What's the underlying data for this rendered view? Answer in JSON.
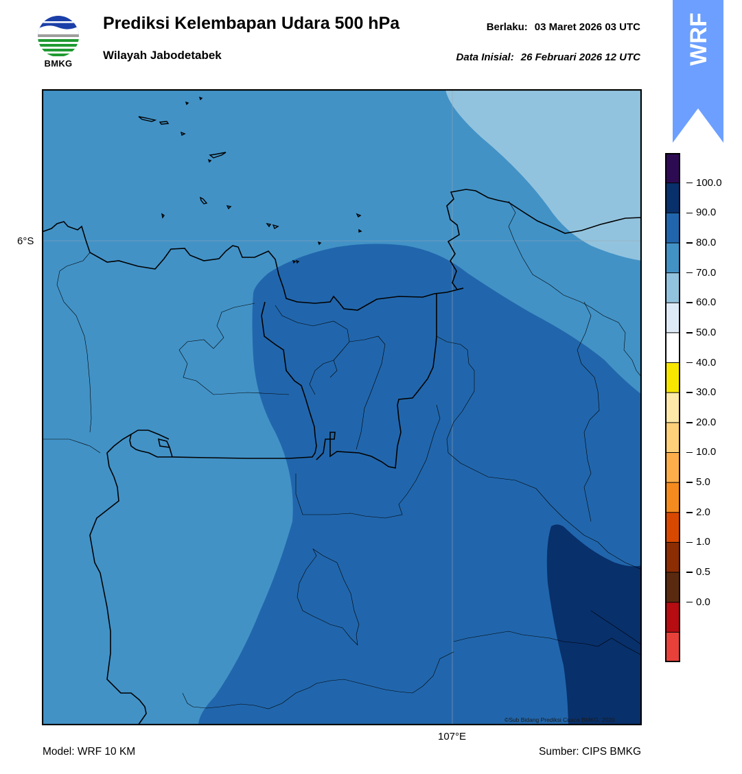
{
  "header": {
    "title": "Prediksi Kelembapan Udara 500 hPa",
    "region": "Wilayah Jabodetabek",
    "valid_label": "Berlaku:",
    "valid_time": "03 Maret 2026 03 UTC",
    "init_label": "Data Inisial:",
    "init_time": "26 Februari 2026 12 UTC"
  },
  "logo": {
    "text": "BMKG",
    "icon": "bmkg-logo"
  },
  "badge": {
    "text": "WRF",
    "color": "#6c9fff"
  },
  "map": {
    "lat_label": "6°S",
    "lon_label": "107°E",
    "credit": "©Sub Bidang Prediksi Cuaca BMKG, 2020",
    "field": "relative humidity 500 hPa",
    "fill_classes": {
      "60-70": "#92c3de",
      "70-80": "#4292c6",
      "80-90": "#2166ac",
      "90-100": "#08306b"
    }
  },
  "colorbar": {
    "labels": [
      "100.0",
      "90.0",
      "80.0",
      "70.0",
      "60.0",
      "50.0",
      "40.0",
      "30.0",
      "20.0",
      "10.0",
      "5.0",
      "2.0",
      "1.0",
      "0.5",
      "0.0"
    ],
    "colors_top_to_bottom": [
      "#2d0b52",
      "#08306b",
      "#2166ac",
      "#4292c6",
      "#92c3de",
      "#deebf7",
      "#ffffff",
      "#f7e600",
      "#ffe9a8",
      "#fed07a",
      "#fdae4b",
      "#f58b1f",
      "#d94801",
      "#8c2d04",
      "#5a2a10",
      "#b50d12",
      "#e8413a"
    ]
  },
  "footer": {
    "model": "Model: WRF 10 KM",
    "source": "Sumber: CIPS BMKG"
  }
}
